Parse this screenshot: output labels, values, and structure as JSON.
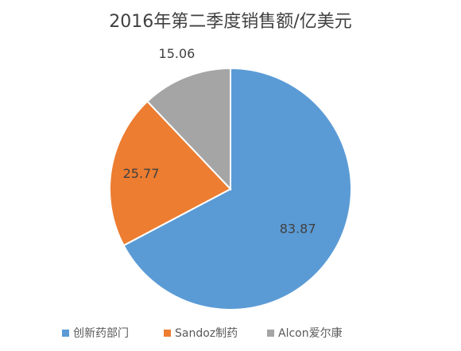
{
  "chart_data": {
    "type": "pie",
    "title": "2016年第二季度销售额/亿美元",
    "categories": [
      "创新药部门",
      "Sandoz制药",
      "Alcon爱尔康"
    ],
    "values": [
      83.87,
      25.77,
      15.06
    ],
    "colors": [
      "#5b9bd5",
      "#ed7d31",
      "#a5a5a5"
    ],
    "legend": "bottom"
  }
}
